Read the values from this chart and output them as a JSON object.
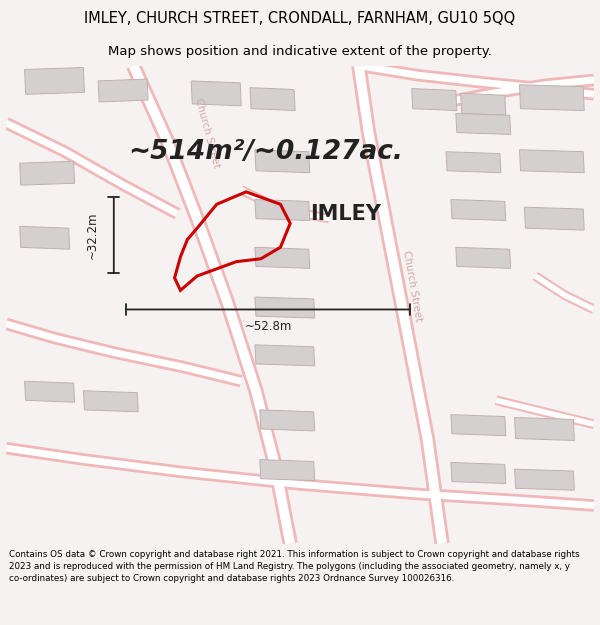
{
  "title_line1": "IMLEY, CHURCH STREET, CRONDALL, FARNHAM, GU10 5QQ",
  "title_line2": "Map shows position and indicative extent of the property.",
  "area_text": "~514m²/~0.127ac.",
  "property_label": "IMLEY",
  "dim_width": "~52.8m",
  "dim_height": "~32.2m",
  "footer_text": "Contains OS data © Crown copyright and database right 2021. This information is subject to Crown copyright and database rights 2023 and is reproduced with the permission of HM Land Registry. The polygons (including the associated geometry, namely x, y co-ordinates) are subject to Crown copyright and database rights 2023 Ordnance Survey 100026316.",
  "bg_color": "#f7f2f2",
  "map_bg": "#ffffff",
  "road_color": "#f0b8b8",
  "building_fill": "#d4d0d0",
  "building_edge": "#c0b0b0",
  "property_color": "#cc0000",
  "dim_color": "#222222",
  "street_label_color": "#d4a8a8",
  "title_fontsize": 10.5,
  "subtitle_fontsize": 9.5,
  "area_fontsize": 19,
  "property_label_fontsize": 15
}
